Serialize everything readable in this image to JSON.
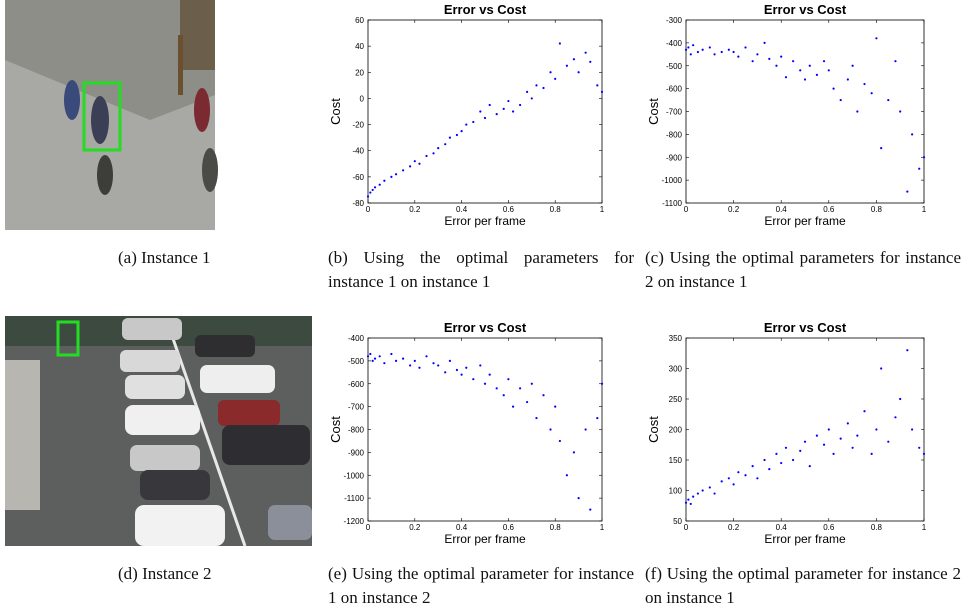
{
  "chart_data": [
    {
      "type": "scatter",
      "title": "Error vs Cost",
      "xlabel": "Error per frame",
      "ylabel": "Cost",
      "xlim": [
        0,
        1
      ],
      "xticks": [
        0,
        0.2,
        0.4,
        0.6,
        0.8,
        1
      ],
      "ylim": [
        -80,
        60
      ],
      "yticks": [
        -80,
        -60,
        -40,
        -20,
        0,
        20,
        40,
        60
      ],
      "series": [
        {
          "color": "#0000ff",
          "x": [
            0,
            0.01,
            0.02,
            0.03,
            0.05,
            0.07,
            0.1,
            0.12,
            0.15,
            0.18,
            0.2,
            0.22,
            0.25,
            0.28,
            0.3,
            0.33,
            0.35,
            0.38,
            0.4,
            0.42,
            0.45,
            0.48,
            0.5,
            0.52,
            0.55,
            0.58,
            0.6,
            0.62,
            0.65,
            0.68,
            0.7,
            0.72,
            0.75,
            0.78,
            0.8,
            0.82,
            0.85,
            0.88,
            0.9,
            0.93,
            0.95,
            0.98,
            1.0
          ],
          "values": [
            -75,
            -72,
            -70,
            -68,
            -66,
            -63,
            -60,
            -58,
            -55,
            -52,
            -48,
            -50,
            -44,
            -42,
            -38,
            -35,
            -30,
            -28,
            -25,
            -20,
            -18,
            -10,
            -15,
            -5,
            -12,
            -8,
            -2,
            -10,
            -5,
            5,
            0,
            10,
            8,
            20,
            15,
            42,
            25,
            30,
            20,
            35,
            28,
            10,
            5
          ]
        }
      ]
    },
    {
      "type": "scatter",
      "title": "Error vs Cost",
      "xlabel": "Error per frame",
      "ylabel": "Cost",
      "xlim": [
        0,
        1
      ],
      "xticks": [
        0,
        0.2,
        0.4,
        0.6,
        0.8,
        1
      ],
      "ylim": [
        -1100,
        -300
      ],
      "yticks": [
        -1100,
        -1000,
        -900,
        -800,
        -700,
        -600,
        -500,
        -400,
        -300
      ],
      "series": [
        {
          "color": "#0000ff",
          "x": [
            0,
            0.01,
            0.02,
            0.03,
            0.05,
            0.07,
            0.1,
            0.12,
            0.15,
            0.18,
            0.2,
            0.22,
            0.25,
            0.28,
            0.3,
            0.33,
            0.35,
            0.38,
            0.4,
            0.42,
            0.45,
            0.48,
            0.5,
            0.52,
            0.55,
            0.58,
            0.6,
            0.62,
            0.65,
            0.68,
            0.7,
            0.72,
            0.75,
            0.78,
            0.8,
            0.82,
            0.85,
            0.88,
            0.9,
            0.93,
            0.95,
            0.98,
            1.0
          ],
          "values": [
            -430,
            -420,
            -450,
            -410,
            -440,
            -430,
            -420,
            -450,
            -440,
            -430,
            -440,
            -460,
            -420,
            -480,
            -450,
            -400,
            -470,
            -500,
            -460,
            -550,
            -480,
            -520,
            -560,
            -500,
            -540,
            -480,
            -520,
            -600,
            -650,
            -560,
            -500,
            -700,
            -580,
            -620,
            -380,
            -860,
            -650,
            -480,
            -700,
            -1050,
            -800,
            -950,
            -900
          ]
        }
      ]
    },
    {
      "type": "scatter",
      "title": "Error vs Cost",
      "xlabel": "Error per frame",
      "ylabel": "Cost",
      "xlim": [
        0,
        1
      ],
      "xticks": [
        0,
        0.2,
        0.4,
        0.6,
        0.8,
        1
      ],
      "ylim": [
        -1200,
        -400
      ],
      "yticks": [
        -1200,
        -1100,
        -1000,
        -900,
        -800,
        -700,
        -600,
        -500,
        -400
      ],
      "series": [
        {
          "color": "#0000ff",
          "x": [
            0,
            0.01,
            0.02,
            0.03,
            0.05,
            0.07,
            0.1,
            0.12,
            0.15,
            0.18,
            0.2,
            0.22,
            0.25,
            0.28,
            0.3,
            0.33,
            0.35,
            0.38,
            0.4,
            0.42,
            0.45,
            0.48,
            0.5,
            0.52,
            0.55,
            0.58,
            0.6,
            0.62,
            0.65,
            0.68,
            0.7,
            0.72,
            0.75,
            0.78,
            0.8,
            0.82,
            0.85,
            0.88,
            0.9,
            0.93,
            0.95,
            0.98,
            1.0
          ],
          "values": [
            -480,
            -470,
            -500,
            -490,
            -480,
            -510,
            -470,
            -500,
            -490,
            -520,
            -500,
            -530,
            -480,
            -510,
            -520,
            -550,
            -500,
            -540,
            -560,
            -530,
            -580,
            -520,
            -600,
            -560,
            -620,
            -650,
            -580,
            -700,
            -620,
            -680,
            -600,
            -750,
            -650,
            -800,
            -700,
            -850,
            -1000,
            -900,
            -1100,
            -800,
            -1150,
            -750,
            -600
          ]
        }
      ]
    },
    {
      "type": "scatter",
      "title": "Error vs Cost",
      "xlabel": "Error per frame",
      "ylabel": "Cost",
      "xlim": [
        0,
        1
      ],
      "xticks": [
        0,
        0.2,
        0.4,
        0.6,
        0.8,
        1
      ],
      "ylim": [
        50,
        350
      ],
      "yticks": [
        50,
        100,
        150,
        200,
        250,
        300,
        350
      ],
      "series": [
        {
          "color": "#0000ff",
          "x": [
            0,
            0.01,
            0.02,
            0.03,
            0.05,
            0.07,
            0.1,
            0.12,
            0.15,
            0.18,
            0.2,
            0.22,
            0.25,
            0.28,
            0.3,
            0.33,
            0.35,
            0.38,
            0.4,
            0.42,
            0.45,
            0.48,
            0.5,
            0.52,
            0.55,
            0.58,
            0.6,
            0.62,
            0.65,
            0.68,
            0.7,
            0.72,
            0.75,
            0.78,
            0.8,
            0.82,
            0.85,
            0.88,
            0.9,
            0.93,
            0.95,
            0.98,
            1.0
          ],
          "values": [
            80,
            85,
            78,
            90,
            95,
            100,
            105,
            95,
            115,
            120,
            110,
            130,
            125,
            140,
            120,
            150,
            135,
            160,
            145,
            170,
            150,
            165,
            180,
            140,
            190,
            175,
            200,
            160,
            185,
            210,
            170,
            190,
            230,
            160,
            200,
            300,
            180,
            220,
            250,
            330,
            200,
            170,
            160
          ]
        }
      ]
    }
  ],
  "captions": [
    "(a) Instance 1",
    "(b) Using the optimal parameters for instance 1 on instance 1",
    "(c) Using the optimal parameters for instance 2 on instance 1",
    "(d) Instance 2",
    "(e) Using the optimal parameter for instance 1 on instance 2",
    "(f) Using the optimal parameter for instance 2 on instance 1"
  ]
}
